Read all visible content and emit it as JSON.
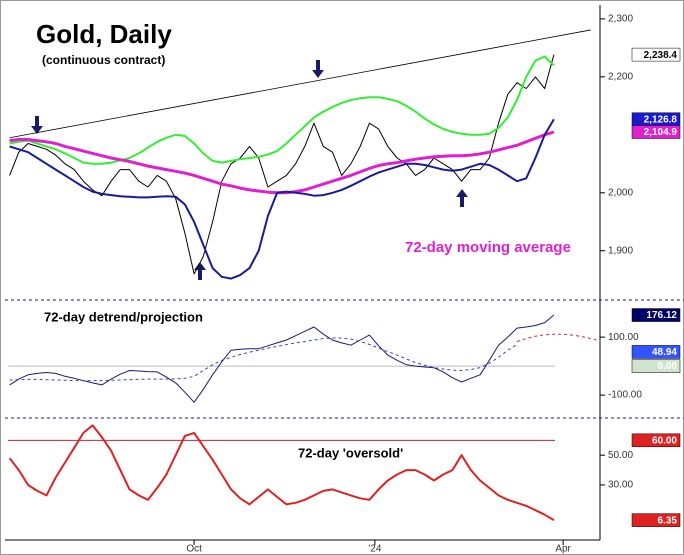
{
  "chart_data": [
    {
      "type": "line",
      "title": "Gold, Daily",
      "subtitle": "(continuous contract)",
      "annotation": "72-day moving average",
      "annotation_color": "#e020d0",
      "xlim": [
        -0.5,
        64
      ],
      "ylim": [
        1815,
        2324
      ],
      "yticks": [
        {
          "value": 2300,
          "label": "2,300"
        },
        {
          "value": 2200,
          "label": "2,200"
        },
        {
          "value": 2000,
          "label": "2,000"
        },
        {
          "value": 1900,
          "label": "1,900"
        }
      ],
      "trend_line": {
        "x": [
          0,
          63
        ],
        "values": [
          2095,
          2281
        ]
      },
      "series": [
        {
          "name": "Close",
          "color": "#000000",
          "width": 1,
          "values": [
            2030,
            2070,
            2085,
            2080,
            2075,
            2065,
            2050,
            2040,
            2020,
            2005,
            1995,
            2020,
            2040,
            2040,
            2020,
            2010,
            2030,
            2020,
            1990,
            1930,
            1860,
            1890,
            1950,
            2020,
            2050,
            2060,
            2080,
            2060,
            2010,
            2020,
            2030,
            2050,
            2080,
            2120,
            2080,
            2070,
            2030,
            2050,
            2080,
            2120,
            2110,
            2080,
            2060,
            2050,
            2030,
            2040,
            2060,
            2050,
            2040,
            2020,
            2040,
            2040,
            2060,
            2120,
            2170,
            2190,
            2180,
            2200,
            2180,
            2238.4
          ]
        },
        {
          "name": "Upper band",
          "color": "#33ee33",
          "width": 2,
          "values": [
            2085,
            2088,
            2090,
            2085,
            2080,
            2075,
            2068,
            2060,
            2052,
            2050,
            2050,
            2052,
            2056,
            2060,
            2068,
            2078,
            2088,
            2095,
            2100,
            2098,
            2085,
            2068,
            2055,
            2052,
            2055,
            2058,
            2060,
            2062,
            2066,
            2072,
            2085,
            2100,
            2115,
            2130,
            2140,
            2148,
            2155,
            2160,
            2163,
            2165,
            2165,
            2162,
            2158,
            2150,
            2140,
            2128,
            2118,
            2110,
            2105,
            2102,
            2100,
            2100,
            2102,
            2112,
            2130,
            2160,
            2200,
            2228,
            2235,
            2220
          ]
        },
        {
          "name": "72-day moving average",
          "color": "#e020d0",
          "width": 3,
          "values": [
            2090,
            2092,
            2092,
            2090,
            2088,
            2085,
            2080,
            2076,
            2072,
            2068,
            2064,
            2060,
            2057,
            2054,
            2050,
            2046,
            2043,
            2040,
            2037,
            2034,
            2030,
            2025,
            2020,
            2015,
            2012,
            2008,
            2005,
            2003,
            2001,
            2000,
            2000,
            2002,
            2005,
            2010,
            2015,
            2020,
            2025,
            2030,
            2036,
            2042,
            2047,
            2050,
            2052,
            2055,
            2058,
            2060,
            2062,
            2063,
            2064,
            2064,
            2065,
            2067,
            2070,
            2074,
            2078,
            2082,
            2088,
            2094,
            2100,
            2104.9
          ]
        },
        {
          "name": "Lower band",
          "color": "#1a1a9a",
          "width": 2,
          "values": [
            2080,
            2075,
            2070,
            2060,
            2050,
            2040,
            2030,
            2020,
            2010,
            2002,
            1998,
            1996,
            1994,
            1993,
            1992,
            1992,
            1993,
            1994,
            1993,
            1980,
            1950,
            1910,
            1870,
            1855,
            1852,
            1858,
            1870,
            1900,
            1960,
            2000,
            2002,
            2000,
            1998,
            1995,
            1996,
            2000,
            2005,
            2012,
            2020,
            2028,
            2035,
            2040,
            2045,
            2050,
            2050,
            2048,
            2044,
            2040,
            2038,
            2040,
            2045,
            2050,
            2048,
            2040,
            2030,
            2020,
            2025,
            2060,
            2100,
            2126.8
          ]
        }
      ],
      "markers": [
        {
          "value": 2238.4,
          "label": "2,238.4",
          "bg": "#ffffff",
          "color": "#000000"
        },
        {
          "value": 2126.8,
          "label": "2,126.8",
          "bg": "#1a1acc",
          "color": "#ffffff"
        },
        {
          "value": 2104.9,
          "label": "2,104.9",
          "bg": "#e020d0",
          "color": "#ffffff"
        }
      ]
    },
    {
      "type": "line",
      "title": "72-day detrend/projection",
      "xlim": [
        -0.5,
        64
      ],
      "ylim": [
        -179,
        228
      ],
      "yticks": [
        {
          "value": 100,
          "label": "100.00"
        },
        {
          "value": -100,
          "label": "-100.00"
        }
      ],
      "ref_lines": [
        {
          "value": 0,
          "color": "#bbbbbb"
        }
      ],
      "series": [
        {
          "name": "Detrend",
          "color": "#1a1a7a",
          "width": 1,
          "values": [
            -65,
            -45,
            -30,
            -25,
            -22,
            -25,
            -35,
            -42,
            -50,
            -58,
            -65,
            -45,
            -28,
            -15,
            -17,
            -19,
            -20,
            -38,
            -58,
            -90,
            -125,
            -80,
            -30,
            15,
            55,
            58,
            60,
            60,
            70,
            80,
            90,
            105,
            120,
            135,
            110,
            90,
            80,
            72,
            90,
            107,
            70,
            38,
            20,
            5,
            0,
            -3,
            -6,
            -20,
            -40,
            -55,
            -42,
            -30,
            20,
            72,
            100,
            131,
            135,
            140,
            150,
            176.12,
            null,
            null,
            null,
            null,
            null
          ]
        },
        {
          "name": "Smoothed",
          "color": "#3344cc",
          "width": 1,
          "dashed": true,
          "values": [
            -48,
            -47,
            -46,
            -46,
            -47,
            -48,
            -49,
            -50,
            -50,
            -50,
            -50,
            -49,
            -48,
            -47,
            -46,
            -45,
            -45,
            -45,
            -44,
            -42,
            -35,
            -15,
            5,
            20,
            30,
            40,
            48,
            55,
            62,
            68,
            74,
            80,
            85,
            90,
            95,
            97,
            97,
            93,
            85,
            75,
            62,
            50,
            38,
            25,
            12,
            3,
            -5,
            -10,
            -14,
            -15,
            -12,
            -5,
            10,
            30,
            55,
            75,
            null,
            null,
            null,
            null,
            null,
            null,
            null,
            null,
            null
          ]
        },
        {
          "name": "Projection",
          "color": "#dd2222",
          "width": 1,
          "dashed": true,
          "values": [
            null,
            null,
            null,
            null,
            null,
            null,
            null,
            null,
            null,
            null,
            null,
            null,
            null,
            null,
            null,
            null,
            null,
            null,
            null,
            null,
            null,
            null,
            null,
            null,
            null,
            null,
            null,
            null,
            null,
            null,
            null,
            null,
            null,
            null,
            null,
            null,
            null,
            null,
            null,
            null,
            null,
            null,
            null,
            null,
            null,
            null,
            null,
            null,
            null,
            null,
            null,
            null,
            null,
            null,
            null,
            85,
            95,
            103,
            108,
            110,
            110,
            107,
            102,
            95,
            87
          ]
        }
      ],
      "markers": [
        {
          "value": 176.12,
          "label": "176.12",
          "bg": "#000066",
          "color": "#ffffff"
        },
        {
          "value": 48.94,
          "label": "48.94",
          "bg": "#3355ff",
          "color": "#ffffff"
        },
        {
          "value": 0,
          "label": "0.00",
          "bg": "#cfe3cf",
          "color": "#ffffff"
        }
      ]
    },
    {
      "type": "line",
      "title": "72-day 'oversold'",
      "xlim": [
        -0.5,
        64
      ],
      "ylim": [
        -7,
        75
      ],
      "yticks": [
        {
          "value": 50,
          "label": "50.00"
        },
        {
          "value": 30,
          "label": "30.00"
        }
      ],
      "xticks": [
        {
          "value": 20,
          "label": "Oct"
        },
        {
          "value": 39.6,
          "label": "'24"
        },
        {
          "value": 60,
          "label": "Apr"
        }
      ],
      "ref_lines": [
        {
          "value": 60,
          "color": "#cc2222"
        }
      ],
      "series": [
        {
          "name": "Oversold",
          "color": "#dd2222",
          "width": 2,
          "values": [
            48,
            40,
            30,
            26,
            23,
            35,
            45,
            55,
            65,
            70,
            62,
            53,
            40,
            27,
            23,
            20,
            28,
            37,
            50,
            63,
            65,
            56,
            47,
            37,
            27,
            21,
            17,
            22,
            27,
            22,
            17,
            18,
            20,
            23,
            26,
            27,
            25,
            23,
            21,
            20,
            27,
            33,
            37,
            40,
            40,
            37,
            33,
            37,
            40,
            50,
            40,
            33,
            28,
            23,
            20,
            18,
            16,
            13,
            10,
            6.35
          ]
        }
      ],
      "markers": [
        {
          "value": 60,
          "label": "60.00",
          "bg": "#dd2222",
          "color": "#ffffff"
        },
        {
          "value": 6.35,
          "label": "6.35",
          "bg": "#dd2222",
          "color": "#ffffff"
        }
      ]
    }
  ]
}
